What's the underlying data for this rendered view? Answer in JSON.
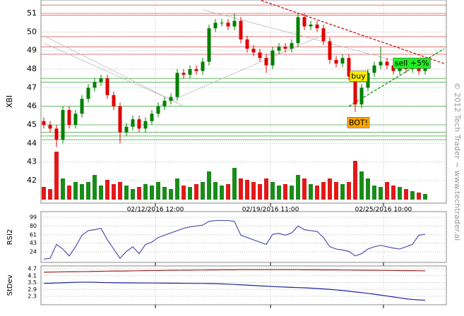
{
  "watermark": "© 2012 Tech Trader ~ www.techtrader.ai",
  "chart_data": [
    {
      "type": "candlestick",
      "ylabel": "XBI",
      "ylim": [
        40.8,
        51.7
      ],
      "yticks": [
        42,
        43,
        44,
        45,
        46,
        47,
        48,
        49,
        50,
        51
      ],
      "grid": true,
      "xticks": [
        {
          "value": 17.56,
          "label": "02/12/2016 12:00"
        },
        {
          "value": 35.67,
          "label": "02/19/2016 11:00"
        },
        {
          "value": 53.44,
          "label": "02/25/2016 10:00"
        }
      ],
      "up_color": "#008000",
      "down_color": "#e00000",
      "open": [
        45.2,
        45.0,
        44.8,
        44.2,
        45.8,
        45.0,
        45.6,
        46.4,
        47.0,
        47.3,
        47.5,
        46.6,
        46.0,
        44.6,
        44.9,
        45.3,
        44.8,
        45.2,
        45.6,
        46.0,
        46.3,
        46.5,
        47.8,
        47.7,
        48.0,
        47.9,
        48.4,
        50.2,
        50.5,
        50.5,
        50.3,
        50.6,
        49.6,
        49.1,
        48.9,
        48.6,
        48.2,
        49.0,
        49.2,
        49.1,
        49.4,
        50.8,
        50.3,
        50.4,
        50.2,
        49.5,
        48.5,
        48.3,
        48.6,
        47.6,
        46.1,
        47.0,
        47.8,
        48.2,
        48.4,
        48.2,
        47.9,
        48.1,
        48.0,
        48.2,
        47.9
      ],
      "high": [
        45.4,
        45.2,
        45.0,
        46.0,
        46.0,
        45.8,
        46.6,
        47.2,
        47.5,
        47.7,
        47.7,
        46.8,
        46.2,
        45.1,
        45.5,
        45.5,
        45.4,
        45.8,
        46.2,
        46.5,
        46.7,
        48.0,
        48.0,
        48.2,
        48.2,
        48.6,
        50.4,
        50.7,
        50.7,
        50.7,
        51.0,
        50.8,
        49.8,
        49.3,
        49.1,
        48.8,
        49.2,
        49.4,
        49.4,
        49.6,
        51.0,
        51.0,
        50.6,
        50.6,
        50.4,
        49.7,
        48.7,
        48.8,
        48.8,
        47.8,
        47.2,
        48.0,
        48.4,
        49.2,
        48.6,
        48.4,
        48.3,
        48.3,
        48.4,
        48.4,
        48.3
      ],
      "low": [
        44.8,
        44.6,
        43.8,
        44.0,
        44.8,
        44.8,
        45.4,
        46.2,
        46.8,
        47.1,
        46.4,
        45.8,
        44.0,
        44.4,
        44.7,
        44.6,
        44.6,
        45.0,
        45.4,
        45.8,
        46.1,
        46.3,
        47.5,
        47.5,
        47.7,
        47.7,
        48.2,
        50.0,
        50.3,
        50.1,
        50.1,
        49.4,
        48.9,
        48.7,
        48.4,
        47.8,
        48.0,
        48.8,
        48.9,
        48.9,
        49.2,
        50.1,
        50.1,
        50.0,
        49.3,
        48.3,
        48.1,
        48.1,
        47.4,
        45.7,
        45.9,
        46.8,
        47.6,
        48.0,
        48.0,
        47.7,
        47.7,
        47.8,
        47.8,
        47.7,
        47.7
      ],
      "close": [
        45.0,
        44.8,
        44.2,
        45.8,
        45.0,
        45.6,
        46.4,
        47.0,
        47.3,
        47.5,
        46.6,
        46.0,
        44.6,
        44.9,
        45.3,
        44.8,
        45.2,
        45.6,
        46.0,
        46.3,
        46.5,
        47.8,
        47.7,
        48.0,
        47.9,
        48.4,
        50.2,
        50.5,
        50.5,
        50.3,
        50.6,
        49.6,
        49.1,
        48.9,
        48.6,
        48.2,
        49.0,
        49.2,
        49.1,
        49.4,
        50.8,
        50.3,
        50.4,
        50.2,
        49.5,
        48.5,
        48.3,
        48.6,
        47.6,
        46.1,
        47.0,
        47.8,
        48.2,
        48.4,
        48.2,
        47.9,
        48.1,
        48.0,
        48.2,
        47.9,
        48.1
      ],
      "volume": [
        18,
        15,
        68,
        30,
        20,
        25,
        22,
        25,
        35,
        20,
        28,
        22,
        25,
        20,
        15,
        18,
        22,
        20,
        25,
        18,
        15,
        30,
        20,
        18,
        22,
        25,
        40,
        25,
        20,
        22,
        45,
        30,
        28,
        25,
        22,
        30,
        25,
        20,
        22,
        20,
        35,
        30,
        22,
        20,
        25,
        30,
        25,
        22,
        25,
        55,
        40,
        30,
        20,
        18,
        25,
        20,
        18,
        15,
        12,
        10,
        8
      ],
      "resistance": {
        "color": "#e06060",
        "levels": [
          51.45,
          51.0,
          50.9,
          49.75,
          49.2,
          48.8
        ]
      },
      "support": {
        "color": "#50b050",
        "levels": [
          47.5,
          47.3,
          46.0,
          45.0,
          44.6,
          44.4,
          44.2
        ]
      },
      "trendlines": [
        {
          "color": "#e00000",
          "dash": true,
          "points": [
            [
              34.2,
              51.7
            ],
            [
              63,
              48.3
            ]
          ]
        },
        {
          "color": "#009000",
          "dash": true,
          "points": [
            [
              48,
              46.0
            ],
            [
              63,
              49.1
            ]
          ]
        },
        {
          "color": "#bbbbbb",
          "dash": false,
          "points": [
            [
              0,
              49.8
            ],
            [
              22,
              46.0
            ]
          ]
        },
        {
          "color": "#bbbbbb",
          "dash": false,
          "points": [
            [
              0,
              49.4
            ],
            [
              21,
              46.2
            ]
          ]
        },
        {
          "color": "#bbbbbb",
          "dash": false,
          "points": [
            [
              18,
              46.0
            ],
            [
              45,
              50.0
            ]
          ]
        },
        {
          "color": "#bbbbbb",
          "dash": false,
          "points": [
            [
              25,
              51.2
            ],
            [
              57,
              48.3
            ]
          ]
        }
      ],
      "annotations": [
        {
          "text": "buy",
          "x": 49.5,
          "y": 47.6,
          "color": "#ffee00"
        },
        {
          "text": "BOT!",
          "x": 49.5,
          "y": 45.1,
          "color": "#ffa500"
        },
        {
          "text": "sell +5%",
          "x": 57.9,
          "y": 48.3,
          "color": "#22ee22"
        }
      ]
    },
    {
      "type": "line",
      "ylabel": "RSI2",
      "ylim": [
        5,
        99
      ],
      "yticks": [
        99,
        80,
        61,
        43,
        24
      ],
      "grid": true,
      "series": [
        {
          "color": "#5050b0",
          "values": [
            8,
            10,
            40,
            30,
            15,
            35,
            60,
            70,
            72,
            75,
            50,
            30,
            10,
            25,
            35,
            20,
            40,
            45,
            55,
            60,
            65,
            70,
            75,
            78,
            80,
            82,
            90,
            92,
            92,
            92,
            90,
            60,
            55,
            50,
            45,
            40,
            62,
            64,
            60,
            65,
            80,
            72,
            70,
            68,
            55,
            35,
            30,
            28,
            25,
            15,
            20,
            30,
            35,
            38,
            35,
            32,
            30,
            35,
            40,
            60,
            62
          ]
        }
      ]
    },
    {
      "type": "line",
      "ylabel": "StDev",
      "ylim": [
        1.6,
        4.8
      ],
      "yticks": [
        4.7,
        4.1,
        3.5,
        2.9,
        2.3
      ],
      "grid": true,
      "series": [
        {
          "color": "#a02020",
          "values": [
            4.4,
            4.41,
            4.42,
            4.43,
            4.44,
            4.44,
            4.45,
            4.46,
            4.47,
            4.48,
            4.49,
            4.5,
            4.5,
            4.51,
            4.52,
            4.53,
            4.54,
            4.55,
            4.55,
            4.56,
            4.57,
            4.57,
            4.58,
            4.58,
            4.59,
            4.59,
            4.6,
            4.6,
            4.61,
            4.61,
            4.61,
            4.62,
            4.62,
            4.62,
            4.62,
            4.62,
            4.62,
            4.62,
            4.62,
            4.62,
            4.62,
            4.61,
            4.61,
            4.61,
            4.6,
            4.6,
            4.6,
            4.59,
            4.59,
            4.58,
            4.58,
            4.57,
            4.57,
            4.56,
            4.56,
            4.55,
            4.55,
            4.54,
            4.54,
            4.53,
            4.52
          ]
        },
        {
          "color": "#2020a0",
          "values": [
            3.42,
            3.44,
            3.46,
            3.48,
            3.5,
            3.52,
            3.53,
            3.53,
            3.52,
            3.5,
            3.49,
            3.48,
            3.48,
            3.47,
            3.47,
            3.46,
            3.46,
            3.46,
            3.45,
            3.45,
            3.44,
            3.44,
            3.43,
            3.43,
            3.42,
            3.42,
            3.41,
            3.4,
            3.38,
            3.36,
            3.33,
            3.3,
            3.27,
            3.24,
            3.21,
            3.18,
            3.15,
            3.12,
            3.1,
            3.08,
            3.06,
            3.04,
            3.01,
            2.98,
            2.94,
            2.9,
            2.85,
            2.8,
            2.74,
            2.68,
            2.62,
            2.55,
            2.48,
            2.4,
            2.32,
            2.24,
            2.16,
            2.08,
            2.02,
            1.98,
            1.96
          ]
        }
      ]
    }
  ]
}
